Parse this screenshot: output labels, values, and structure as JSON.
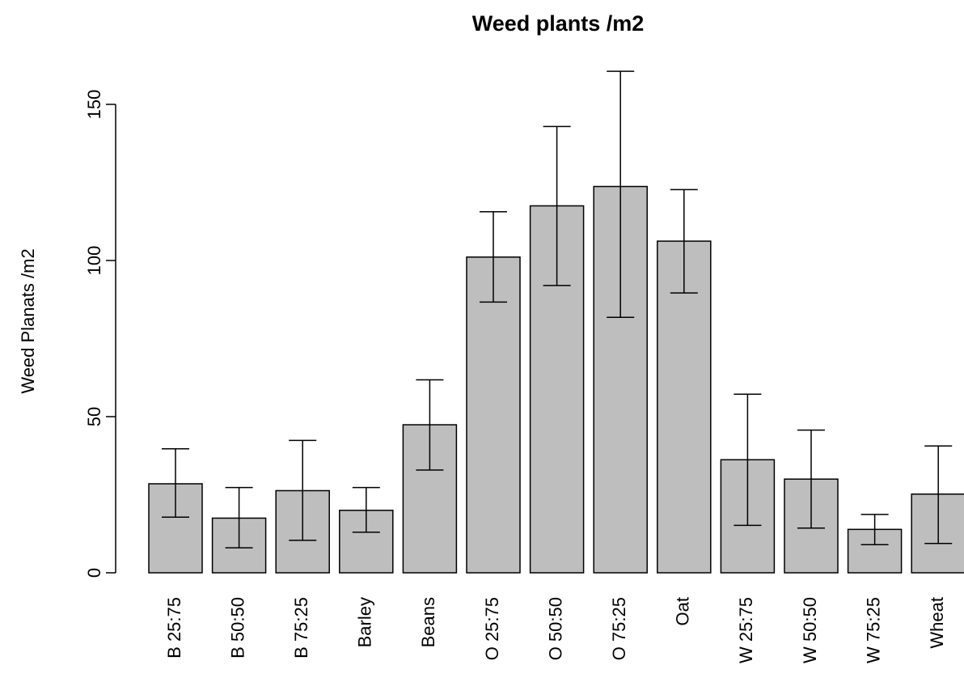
{
  "chart_data": {
    "type": "bar",
    "title": "Weed plants /m2",
    "xlabel": "",
    "ylabel": "Weed Planats /m2",
    "ylim": [
      0,
      165
    ],
    "yticks": [
      0,
      50,
      100,
      150
    ],
    "categories": [
      "B 25:75",
      "B 50:50",
      "B 75:25",
      "Barley",
      "Beans",
      "O 25:75",
      "O 50:50",
      "O 75:25",
      "Oat",
      "W 25:75",
      "W 50:50",
      "W 75:25",
      "Wheat"
    ],
    "values": [
      28.5,
      17.5,
      26.3,
      20.0,
      47.4,
      101.1,
      117.5,
      123.7,
      106.2,
      36.2,
      30.0,
      13.9,
      25.2
    ],
    "error_low": [
      17.8,
      8.0,
      10.4,
      13.0,
      32.9,
      86.7,
      92.0,
      81.8,
      89.6,
      15.2,
      14.3,
      9.0,
      9.4
    ],
    "error_high": [
      39.7,
      27.3,
      42.4,
      27.3,
      61.8,
      115.6,
      142.9,
      160.6,
      122.7,
      57.2,
      45.7,
      18.7,
      40.6
    ],
    "bar_color": "#bebebe",
    "grid": false,
    "legend": "none"
  }
}
